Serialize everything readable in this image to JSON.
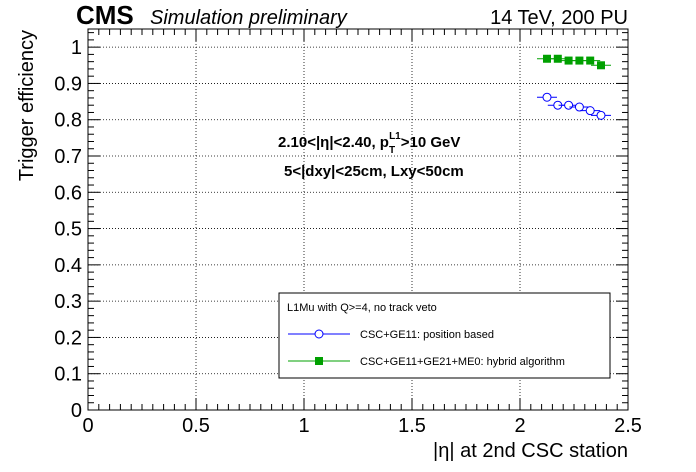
{
  "header": {
    "cms_label": "CMS",
    "simulation_label": "Simulation preliminary",
    "energy_label": "14 TeV, 200 PU"
  },
  "chart_data": {
    "type": "scatter",
    "xlabel": "|η| at 2nd CSC station",
    "ylabel": "Trigger efficiency",
    "xlim": [
      0,
      2.5
    ],
    "ylim": [
      0,
      1.05
    ],
    "xticks": [
      0,
      0.5,
      1,
      1.5,
      2,
      2.5
    ],
    "xtick_labels": [
      "0",
      "0.5",
      "1",
      "1.5",
      "2",
      "2.5"
    ],
    "yticks": [
      0,
      0.1,
      0.2,
      0.3,
      0.4,
      0.5,
      0.6,
      0.7,
      0.8,
      0.9,
      1
    ],
    "ytick_labels": [
      "0",
      "0.1",
      "0.2",
      "0.3",
      "0.4",
      "0.5",
      "0.6",
      "0.7",
      "0.8",
      "0.9",
      "1"
    ],
    "grid": true,
    "annotations": {
      "line1_a": "2.10<|η|<2.40, p",
      "line1_sub": "T",
      "line1_sup": "L1",
      "line1_b": ">10 GeV",
      "line2": "5<|dxy|<25cm, Lxy<50cm"
    },
    "legend": {
      "placement": "bottom-right",
      "title": "L1Mu with Q>=4, no track veto"
    },
    "series": [
      {
        "name": "CSC+GE11: position based",
        "color": "#0000ff",
        "marker": "open-circle",
        "x": [
          2.125,
          2.175,
          2.225,
          2.275,
          2.325,
          2.375
        ],
        "y": [
          0.862,
          0.84,
          0.84,
          0.835,
          0.825,
          0.812
        ]
      },
      {
        "name": "CSC+GE11+GE21+ME0: hybrid algorithm",
        "color": "#00a000",
        "marker": "filled-square",
        "x": [
          2.125,
          2.175,
          2.225,
          2.275,
          2.325,
          2.375
        ],
        "y": [
          0.968,
          0.968,
          0.963,
          0.963,
          0.963,
          0.95
        ]
      }
    ]
  }
}
